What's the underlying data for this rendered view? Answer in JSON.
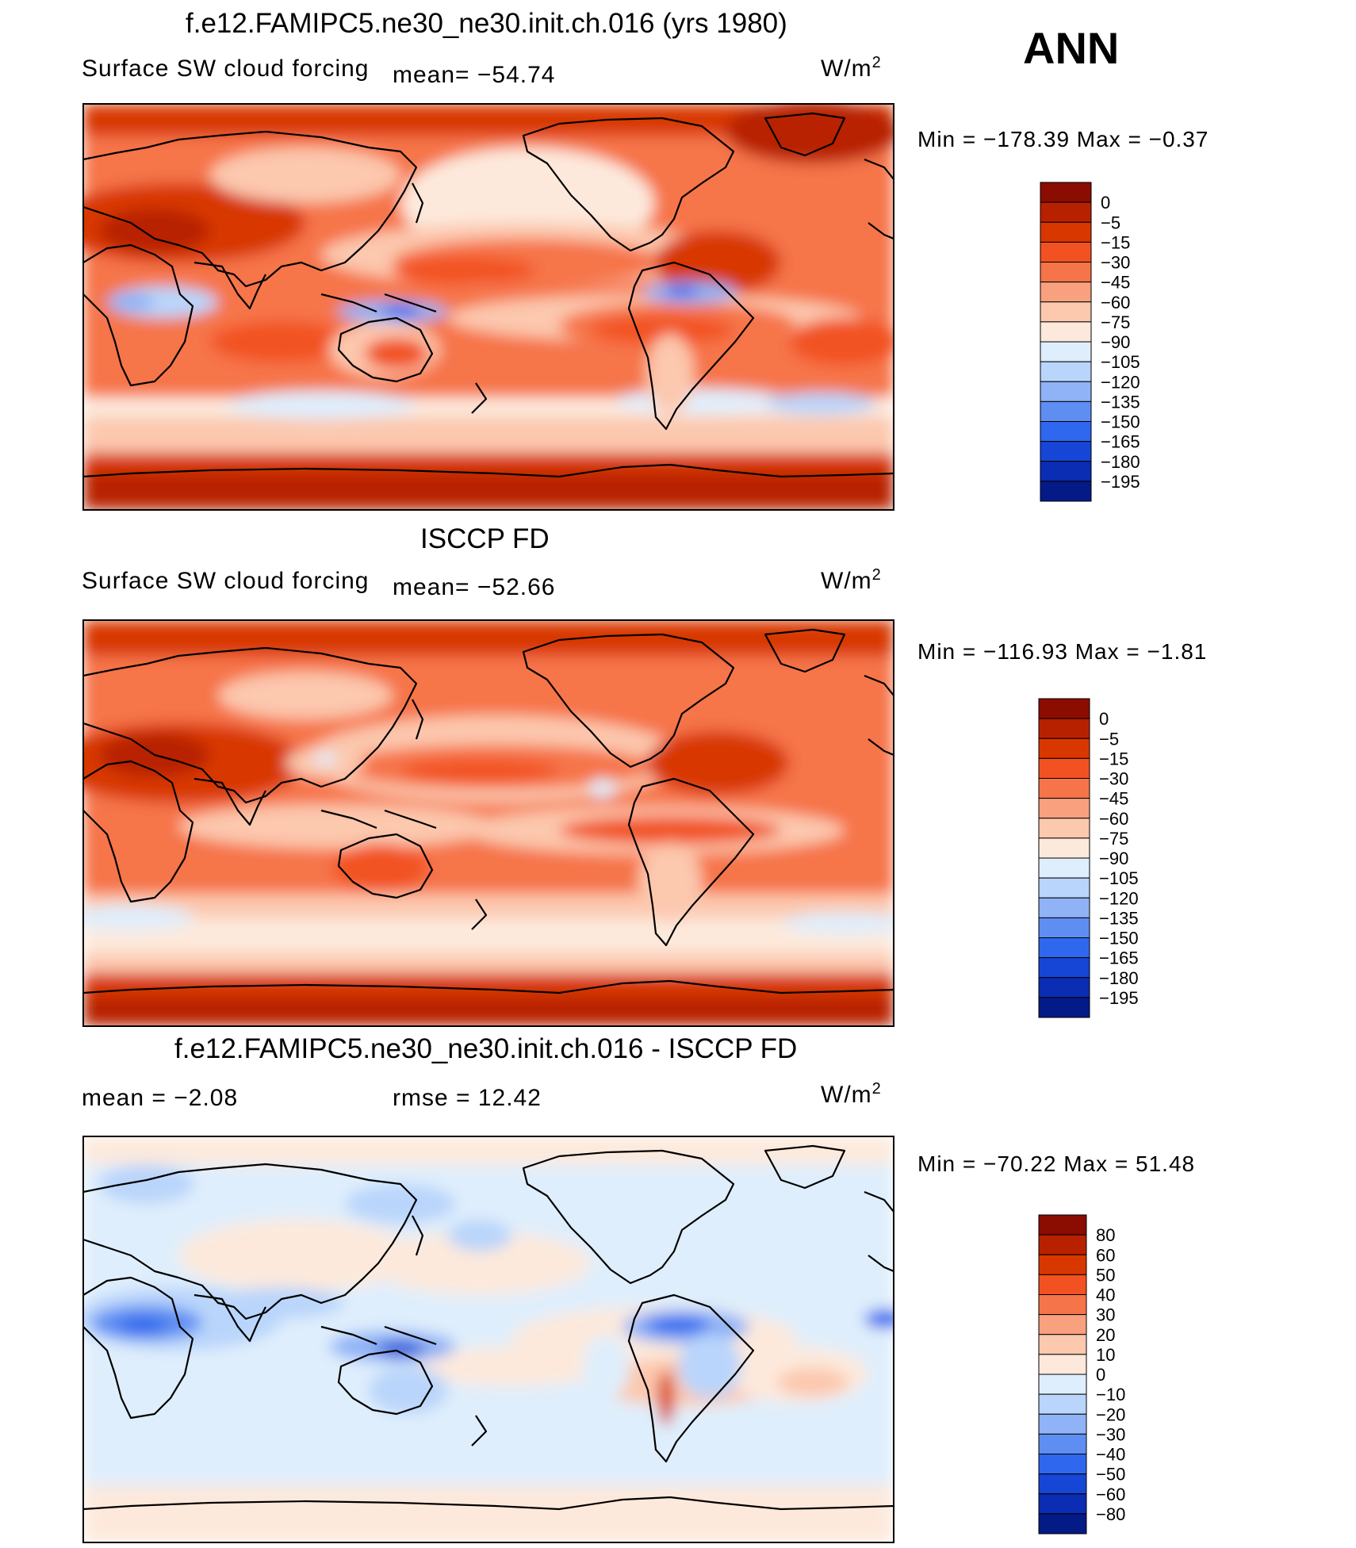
{
  "season": "ANN",
  "chart_data": [
    {
      "type": "heatmap",
      "title": "f.e12.FAMIPC5.ne30_ne30.init.ch.016 (yrs 1980)",
      "variable": "Surface SW cloud forcing",
      "mean_text": "mean= −54.74",
      "units_text": "W/m",
      "units_exp": "2",
      "min_max_text": "Min  =  −178.39  Max  =    −0.37",
      "min": -178.39,
      "max": -0.37,
      "mean": -54.74,
      "levels": [
        "0",
        "−5",
        "−15",
        "−30",
        "−45",
        "−60",
        "−75",
        "−90",
        "−105",
        "−120",
        "−135",
        "−150",
        "−165",
        "−180",
        "−195"
      ],
      "colors": [
        "#8b0c00",
        "#b82100",
        "#d83800",
        "#f25221",
        "#f6744a",
        "#f9a07f",
        "#fcc8ae",
        "#fde9dc",
        "#dfeefc",
        "#b9d5fb",
        "#8fb3f6",
        "#5e8ef2",
        "#2f68ee",
        "#1646d6",
        "#0b2db3",
        "#041a86"
      ]
    },
    {
      "type": "heatmap",
      "title": "ISCCP FD",
      "variable": "Surface SW cloud forcing",
      "mean_text": "mean= −52.66",
      "units_text": "W/m",
      "units_exp": "2",
      "min_max_text": "Min  =  −116.93  Max  =    −1.81",
      "min": -116.93,
      "max": -1.81,
      "mean": -52.66,
      "levels": [
        "0",
        "−5",
        "−15",
        "−30",
        "−45",
        "−60",
        "−75",
        "−90",
        "−105",
        "−120",
        "−135",
        "−150",
        "−165",
        "−180",
        "−195"
      ],
      "colors": [
        "#8b0c00",
        "#b82100",
        "#d83800",
        "#f25221",
        "#f6744a",
        "#f9a07f",
        "#fcc8ae",
        "#fde9dc",
        "#dfeefc",
        "#b9d5fb",
        "#8fb3f6",
        "#5e8ef2",
        "#2f68ee",
        "#1646d6",
        "#0b2db3",
        "#041a86"
      ]
    },
    {
      "type": "heatmap",
      "title": "f.e12.FAMIPC5.ne30_ne30.init.ch.016 - ISCCP FD",
      "mean_text": "mean  =    −2.08",
      "rmse_text": "rmse  =    12.42",
      "mean": -2.08,
      "rmse": 12.42,
      "units_text": "W/m",
      "units_exp": "2",
      "min_max_text": "Min  =  −70.22  Max  =    51.48",
      "min": -70.22,
      "max": 51.48,
      "levels": [
        "80",
        "60",
        "50",
        "40",
        "30",
        "20",
        "10",
        "0",
        "−10",
        "−20",
        "−30",
        "−40",
        "−50",
        "−60",
        "−80"
      ],
      "colors": [
        "#8b0c00",
        "#b82100",
        "#d83800",
        "#f25221",
        "#f6744a",
        "#f9a07f",
        "#fcc8ae",
        "#fde9dc",
        "#dfeefc",
        "#b9d5fb",
        "#8fb3f6",
        "#5e8ef2",
        "#2f68ee",
        "#1646d6",
        "#0b2db3",
        "#041a86"
      ]
    }
  ]
}
